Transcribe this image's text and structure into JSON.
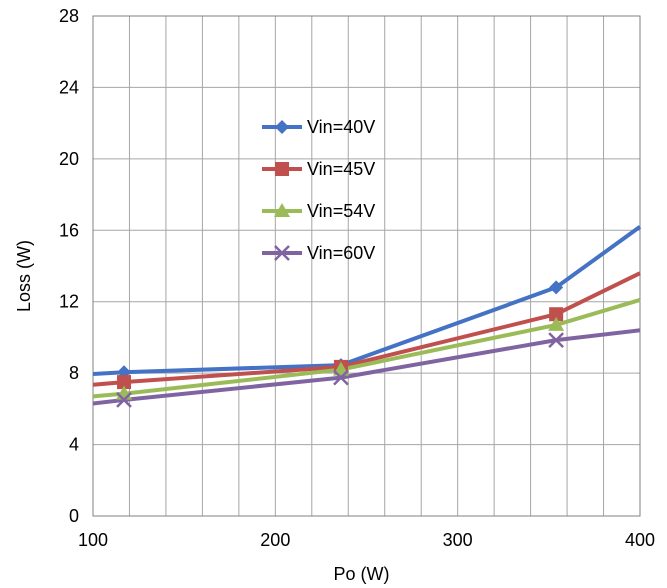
{
  "chart_data": {
    "type": "line",
    "title": "",
    "xlabel": "Po (W)",
    "ylabel": "Loss (W)",
    "xlim": [
      100,
      400
    ],
    "ylim": [
      0,
      28
    ],
    "x_ticks": [
      100,
      200,
      300,
      400
    ],
    "y_ticks": [
      0,
      4,
      8,
      12,
      16,
      20,
      24,
      28
    ],
    "x_minor_step": 20,
    "grid": true,
    "legend_position": "upper-center",
    "series": [
      {
        "name": "Vin=40V",
        "color": "#4472c4",
        "marker": "diamond",
        "x": [
          100,
          117,
          236,
          354,
          400
        ],
        "y": [
          7.95,
          8.05,
          8.45,
          12.8,
          16.2
        ]
      },
      {
        "name": "Vin=45V",
        "color": "#c0504d",
        "marker": "square",
        "x": [
          100,
          117,
          236,
          354,
          400
        ],
        "y": [
          7.35,
          7.5,
          8.35,
          11.3,
          13.6
        ]
      },
      {
        "name": "Vin=54V",
        "color": "#9bbb59",
        "marker": "triangle",
        "x": [
          100,
          117,
          236,
          354,
          400
        ],
        "y": [
          6.7,
          6.85,
          8.2,
          10.7,
          12.1
        ]
      },
      {
        "name": "Vin=60V",
        "color": "#8064a2",
        "marker": "x",
        "x": [
          100,
          117,
          236,
          354,
          400
        ],
        "y": [
          6.3,
          6.5,
          7.75,
          9.85,
          10.4
        ]
      }
    ]
  }
}
